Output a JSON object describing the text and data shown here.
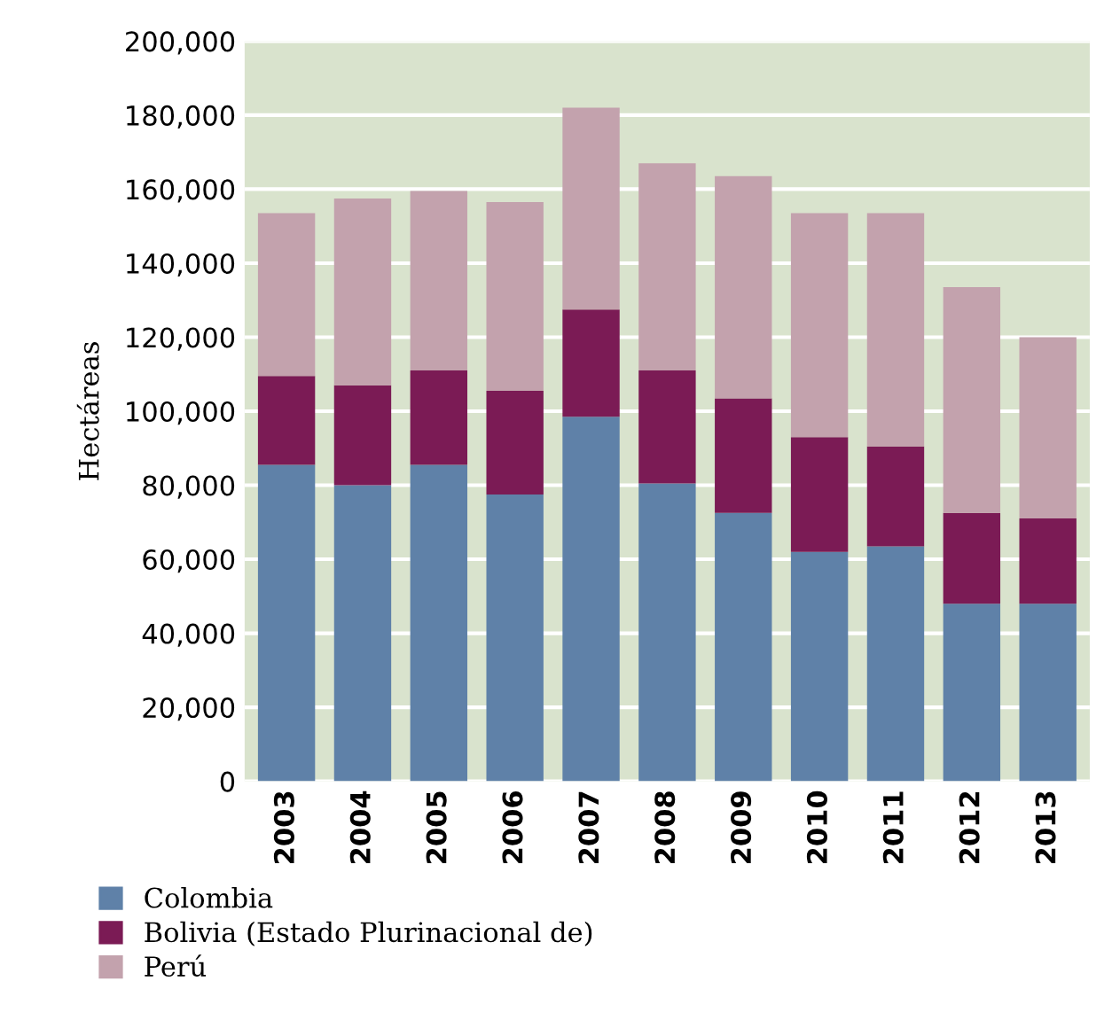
{
  "chart_data": {
    "type": "bar",
    "stacked": true,
    "ylabel": "Hectáreas",
    "categories": [
      "2003",
      "2004",
      "2005",
      "2006",
      "2007",
      "2008",
      "2009",
      "2010",
      "2011",
      "2012",
      "2013"
    ],
    "series": [
      {
        "name": "Colombia",
        "color": "#5f81a8",
        "values": [
          85500,
          80000,
          85500,
          77500,
          98500,
          80500,
          72500,
          62000,
          63500,
          48000,
          48000
        ]
      },
      {
        "name": "Bolivia (Estado Plurinacional de)",
        "color": "#7b1b55",
        "values": [
          24000,
          27000,
          25500,
          28000,
          29000,
          30500,
          31000,
          31000,
          27000,
          24500,
          23000
        ]
      },
      {
        "name": "Perú",
        "color": "#c3a2ad",
        "values": [
          44000,
          50500,
          48500,
          51000,
          54500,
          56000,
          60000,
          60500,
          63000,
          61000,
          49000
        ]
      }
    ],
    "ylim": [
      0,
      200000
    ],
    "yticks": [
      {
        "value": 0,
        "label": "0"
      },
      {
        "value": 20000,
        "label": "20,000"
      },
      {
        "value": 40000,
        "label": "40,000"
      },
      {
        "value": 60000,
        "label": "60,000"
      },
      {
        "value": 80000,
        "label": "80,000"
      },
      {
        "value": 100000,
        "label": "100,000"
      },
      {
        "value": 120000,
        "label": "120,000"
      },
      {
        "value": 140000,
        "label": "140,000"
      },
      {
        "value": 160000,
        "label": "160,000"
      },
      {
        "value": 180000,
        "label": "180,000"
      },
      {
        "value": 200000,
        "label": "200,000"
      }
    ],
    "grid": "y",
    "legend": "bottom"
  }
}
